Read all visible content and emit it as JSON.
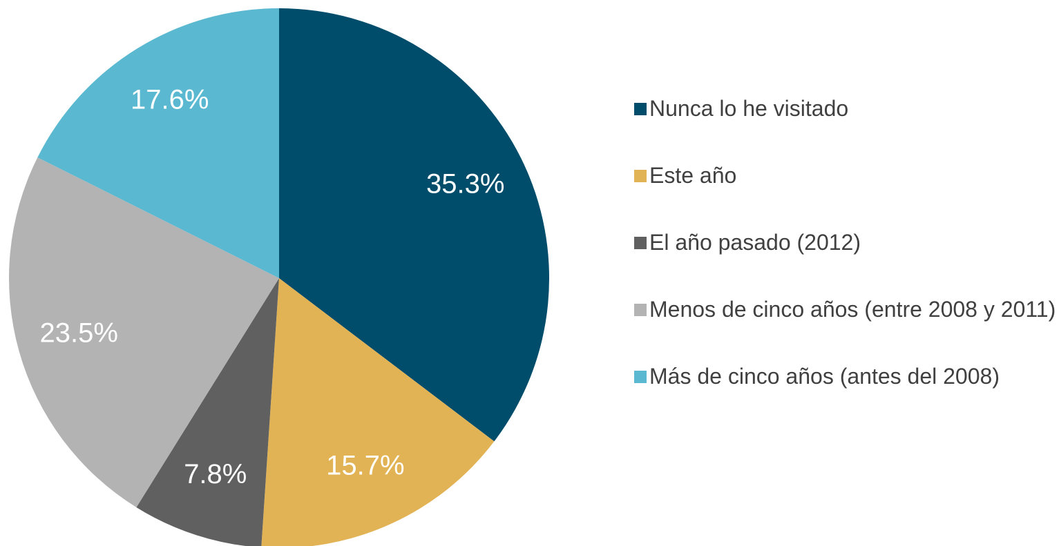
{
  "chart_data": {
    "type": "pie",
    "categories": [
      "Nunca lo he visitado",
      "Este año",
      "El año pasado (2012)",
      "Menos de cinco años (entre 2008 y 2011)",
      "Más de cinco años (antes del 2008)"
    ],
    "values": [
      35.3,
      15.7,
      7.8,
      23.5,
      17.6
    ],
    "value_labels": [
      "35.3%",
      "15.7%",
      "7.8%",
      "23.5%",
      "17.6%"
    ],
    "colors": [
      "#004d6b",
      "#e2b355",
      "#606060",
      "#b3b3b3",
      "#5ab9d1"
    ],
    "legend": "right"
  }
}
